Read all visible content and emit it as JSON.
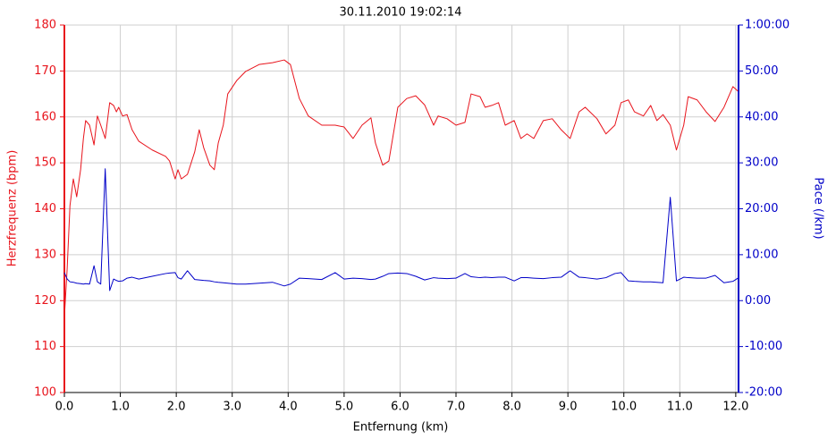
{
  "chart_data": {
    "type": "line",
    "title": "30.11.2010 19:02:14",
    "xlabel": "Entfernung (km)",
    "ylabel": "Herzfrequenz (bpm)",
    "y2label": "Pace (/km)",
    "grid": true,
    "xlim": [
      0,
      12.05
    ],
    "xticks": [
      {
        "value": 0,
        "label": "0.0"
      },
      {
        "value": 1,
        "label": "1.0"
      },
      {
        "value": 2,
        "label": "2.0"
      },
      {
        "value": 3,
        "label": "3.0"
      },
      {
        "value": 4,
        "label": "4.0"
      },
      {
        "value": 5,
        "label": "5.0"
      },
      {
        "value": 6,
        "label": "6.0"
      },
      {
        "value": 7,
        "label": "7.0"
      },
      {
        "value": 8,
        "label": "8.0"
      },
      {
        "value": 9,
        "label": "9.0"
      },
      {
        "value": 10,
        "label": "10.0"
      },
      {
        "value": 11,
        "label": "11.0"
      },
      {
        "value": 12,
        "label": "12.0"
      }
    ],
    "ylim": [
      100,
      180
    ],
    "yticks": [
      100,
      110,
      120,
      130,
      140,
      150,
      160,
      170,
      180
    ],
    "y2lim": [
      -20,
      60
    ],
    "y2ticks": [
      {
        "value": -20,
        "label": "-20:00"
      },
      {
        "value": -10,
        "label": "-10:00"
      },
      {
        "value": 0,
        "label": "0:00"
      },
      {
        "value": 10,
        "label": "10:00"
      },
      {
        "value": 20,
        "label": "20:00"
      },
      {
        "value": 30,
        "label": "30:00"
      },
      {
        "value": 40,
        "label": "40:00"
      },
      {
        "value": 50,
        "label": "50:00"
      },
      {
        "value": 60,
        "label": "1:00:00"
      }
    ],
    "x": [
      0.0,
      0.05,
      0.1,
      0.16,
      0.22,
      0.29,
      0.34,
      0.38,
      0.45,
      0.53,
      0.59,
      0.65,
      0.73,
      0.81,
      0.88,
      0.93,
      0.97,
      1.04,
      1.12,
      1.21,
      1.33,
      1.57,
      1.81,
      1.88,
      1.98,
      2.03,
      2.09,
      2.2,
      2.33,
      2.41,
      2.49,
      2.6,
      2.68,
      2.75,
      2.84,
      2.92,
      3.08,
      3.24,
      3.48,
      3.72,
      3.93,
      4.04,
      4.2,
      4.36,
      4.6,
      4.84,
      5.0,
      5.16,
      5.32,
      5.48,
      5.56,
      5.69,
      5.8,
      5.96,
      6.12,
      6.28,
      6.44,
      6.6,
      6.68,
      6.84,
      7.0,
      7.16,
      7.27,
      7.43,
      7.52,
      7.64,
      7.76,
      7.88,
      8.04,
      8.16,
      8.27,
      8.39,
      8.56,
      8.72,
      8.88,
      9.04,
      9.2,
      9.31,
      9.52,
      9.68,
      9.84,
      9.95,
      10.08,
      10.19,
      10.35,
      10.48,
      10.59,
      10.7,
      10.83,
      10.94,
      11.07,
      11.15,
      11.31,
      11.47,
      11.63,
      11.79,
      11.95,
      12.04
    ],
    "series": [
      {
        "color": "#e8141c",
        "values": [
          116.4,
          127,
          140.7,
          146.5,
          142.6,
          148.5,
          155.3,
          159.2,
          158.2,
          153.9,
          160.2,
          158.2,
          155.3,
          163.1,
          162.5,
          161.1,
          162.1,
          160.2,
          160.5,
          157.2,
          154.7,
          152.8,
          151.4,
          150.4,
          146.5,
          148.5,
          146.5,
          147.5,
          152.4,
          157.2,
          153.3,
          149.5,
          148.5,
          154.3,
          158.2,
          165,
          167.9,
          169.9,
          171.4,
          171.8,
          172.4,
          171.4,
          164,
          160.2,
          158.2,
          158.2,
          157.8,
          155.3,
          158.2,
          159.8,
          154.3,
          149.5,
          150.4,
          162.1,
          164,
          164.6,
          162.6,
          158.2,
          160.2,
          159.6,
          158.2,
          158.8,
          165,
          164.4,
          162.1,
          162.5,
          163.1,
          158.2,
          159.2,
          155.3,
          156.3,
          155.3,
          159.2,
          159.6,
          157.2,
          155.3,
          161.1,
          162.1,
          159.6,
          156.3,
          158.2,
          163.1,
          163.7,
          161.1,
          160.2,
          162.5,
          159.2,
          160.5,
          158.2,
          152.8,
          158.2,
          164.4,
          163.7,
          161.1,
          159,
          162.1,
          166.6,
          165.6
        ]
      },
      {
        "color": "#0000c8",
        "axis": "y2",
        "values": [
          6.1,
          4.7,
          4.1,
          4.0,
          3.8,
          3.7,
          3.6,
          3.7,
          3.6,
          7.6,
          4.1,
          3.6,
          28.7,
          2.2,
          4.7,
          4.4,
          4.2,
          4.3,
          4.9,
          5.1,
          4.7,
          5.3,
          5.9,
          6.0,
          6.1,
          5.0,
          4.7,
          6.5,
          4.6,
          4.5,
          4.4,
          4.3,
          4.1,
          4.0,
          3.9,
          3.8,
          3.6,
          3.6,
          3.8,
          4.0,
          3.2,
          3.6,
          4.9,
          4.8,
          4.6,
          6.1,
          4.7,
          4.9,
          4.8,
          4.6,
          4.7,
          5.3,
          5.9,
          6.0,
          5.9,
          5.3,
          4.5,
          5.0,
          4.9,
          4.8,
          4.9,
          5.9,
          5.2,
          5.0,
          5.1,
          5.0,
          5.1,
          5.1,
          4.3,
          5.0,
          5.0,
          4.9,
          4.8,
          5.0,
          5.1,
          6.5,
          5.1,
          5.0,
          4.7,
          5.0,
          5.9,
          6.1,
          4.3,
          4.2,
          4.1,
          4.1,
          4.0,
          3.9,
          22.5,
          4.3,
          5.1,
          5.0,
          4.9,
          4.9,
          5.5,
          3.9,
          4.2,
          4.9
        ]
      }
    ]
  }
}
